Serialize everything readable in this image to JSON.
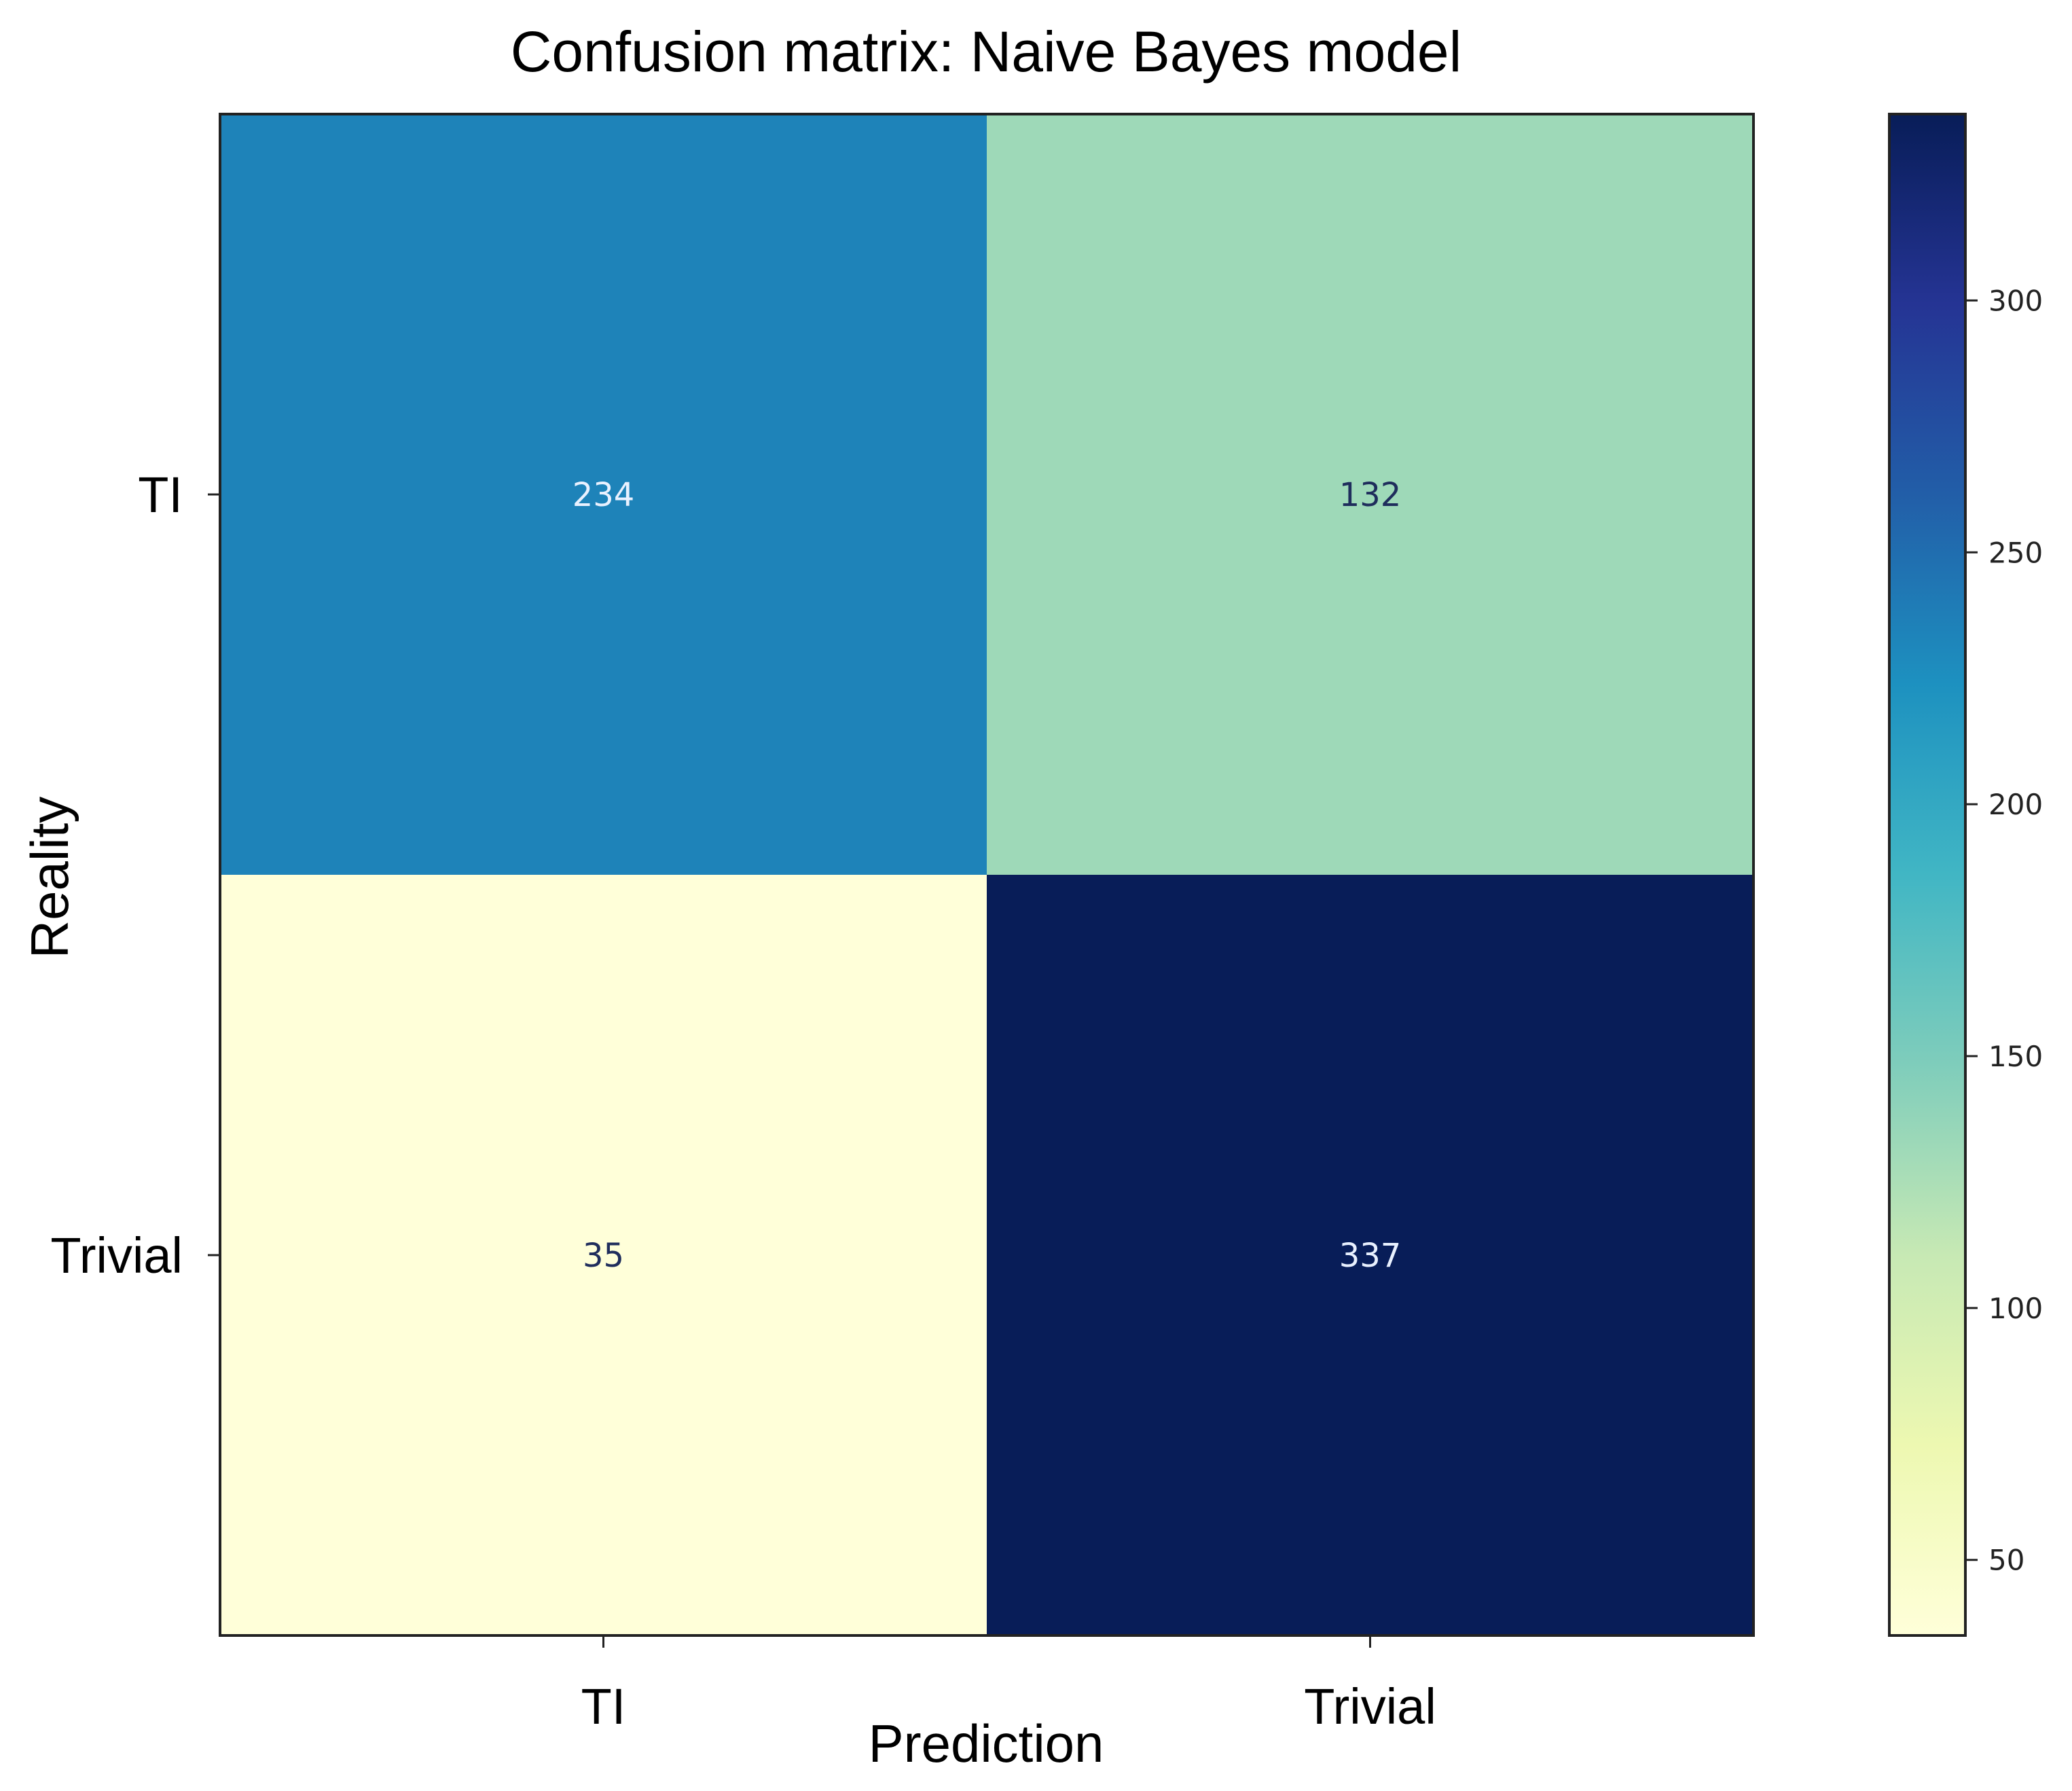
{
  "chart_data": {
    "type": "heatmap",
    "title": "Confusion matrix: Naive Bayes model",
    "xlabel": "Prediction",
    "ylabel": "Reality",
    "x_categories": [
      "TI",
      "Trivial"
    ],
    "y_categories": [
      "TI",
      "Trivial"
    ],
    "matrix": [
      [
        234,
        132
      ],
      [
        35,
        337
      ]
    ],
    "colormap": "YlGnBu",
    "colorbar": {
      "range": [
        35,
        337
      ],
      "ticks": [
        50,
        100,
        150,
        200,
        250,
        300
      ]
    },
    "grid": false,
    "legend": "colorbar-right"
  },
  "colors": {
    "ylgnbu": [
      "#ffffd9",
      "#edf8b1",
      "#c7e9b4",
      "#7fcdbb",
      "#41b6c4",
      "#1d91c0",
      "#225ea8",
      "#253494",
      "#081d58"
    ],
    "dark_text": "#1f2d5c",
    "light_text": "#e9f1ff",
    "frame": "#222222"
  }
}
